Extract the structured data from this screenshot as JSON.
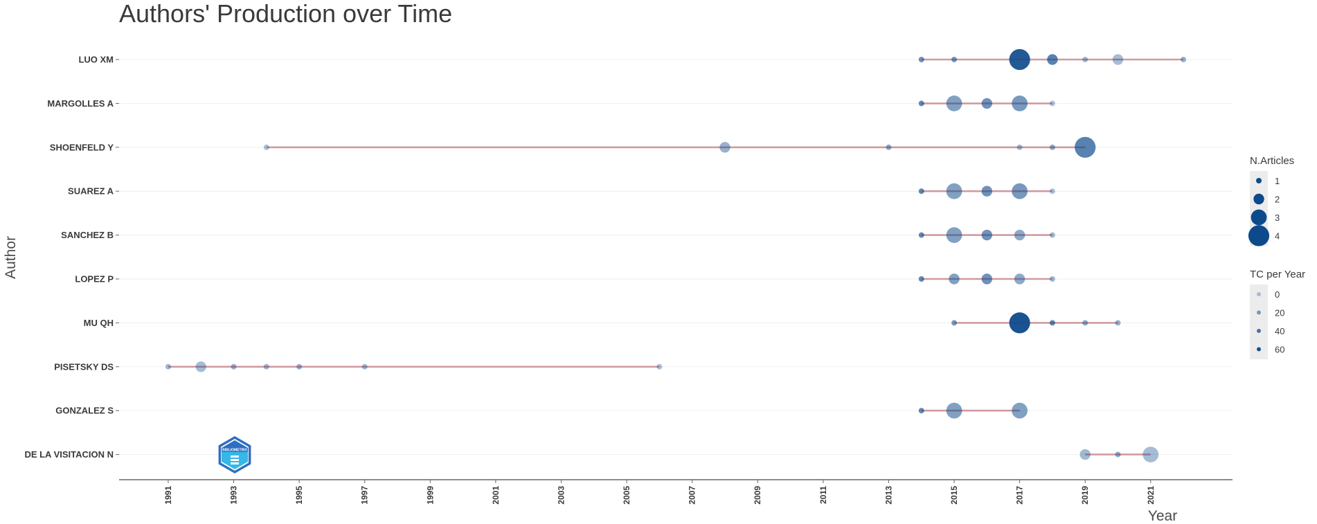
{
  "chart_data": {
    "type": "scatter",
    "title": "Authors' Production over Time",
    "xlabel": "Year",
    "ylabel": "Author",
    "xlim": [
      1989.5,
      2023.5
    ],
    "x_ticks": [
      1991,
      1993,
      1995,
      1997,
      1999,
      2001,
      2003,
      2005,
      2007,
      2009,
      2011,
      2013,
      2015,
      2017,
      2019,
      2021
    ],
    "authors": [
      "LUO XM",
      "MARGOLLES A",
      "SHOENFELD Y",
      "SUAREZ A",
      "SANCHEZ B",
      "LOPEZ P",
      "MU QH",
      "PISETSKY DS",
      "GONZALEZ S",
      "DE LA VISITACION N"
    ],
    "series": [
      {
        "author": "LUO XM",
        "range": [
          2014,
          2022
        ],
        "points": [
          {
            "year": 2014,
            "articles": 1,
            "tc": 35
          },
          {
            "year": 2015,
            "articles": 1,
            "tc": 30
          },
          {
            "year": 2017,
            "articles": 4,
            "tc": 70
          },
          {
            "year": 2018,
            "articles": 2,
            "tc": 45
          },
          {
            "year": 2019,
            "articles": 1,
            "tc": 10
          },
          {
            "year": 2020,
            "articles": 2,
            "tc": 8
          },
          {
            "year": 2022,
            "articles": 1,
            "tc": 15
          }
        ]
      },
      {
        "author": "MARGOLLES A",
        "range": [
          2014,
          2018
        ],
        "points": [
          {
            "year": 2014,
            "articles": 1,
            "tc": 40
          },
          {
            "year": 2015,
            "articles": 3,
            "tc": 25
          },
          {
            "year": 2016,
            "articles": 2,
            "tc": 35
          },
          {
            "year": 2017,
            "articles": 3,
            "tc": 30
          },
          {
            "year": 2018,
            "articles": 1,
            "tc": 5
          }
        ]
      },
      {
        "author": "SHOENFELD Y",
        "range": [
          1994,
          2019
        ],
        "points": [
          {
            "year": 1994,
            "articles": 1,
            "tc": 5
          },
          {
            "year": 2008,
            "articles": 2,
            "tc": 15
          },
          {
            "year": 2013,
            "articles": 1,
            "tc": 20
          },
          {
            "year": 2017,
            "articles": 1,
            "tc": 10
          },
          {
            "year": 2018,
            "articles": 1,
            "tc": 20
          },
          {
            "year": 2019,
            "articles": 4,
            "tc": 45
          }
        ]
      },
      {
        "author": "SUAREZ A",
        "range": [
          2014,
          2018
        ],
        "points": [
          {
            "year": 2014,
            "articles": 1,
            "tc": 40
          },
          {
            "year": 2015,
            "articles": 3,
            "tc": 25
          },
          {
            "year": 2016,
            "articles": 2,
            "tc": 35
          },
          {
            "year": 2017,
            "articles": 3,
            "tc": 30
          },
          {
            "year": 2018,
            "articles": 1,
            "tc": 5
          }
        ]
      },
      {
        "author": "SANCHEZ B",
        "range": [
          2014,
          2018
        ],
        "points": [
          {
            "year": 2014,
            "articles": 1,
            "tc": 40
          },
          {
            "year": 2015,
            "articles": 3,
            "tc": 25
          },
          {
            "year": 2016,
            "articles": 2,
            "tc": 35
          },
          {
            "year": 2017,
            "articles": 2,
            "tc": 20
          },
          {
            "year": 2018,
            "articles": 1,
            "tc": 10
          }
        ]
      },
      {
        "author": "LOPEZ P",
        "range": [
          2014,
          2018
        ],
        "points": [
          {
            "year": 2014,
            "articles": 1,
            "tc": 40
          },
          {
            "year": 2015,
            "articles": 2,
            "tc": 25
          },
          {
            "year": 2016,
            "articles": 2,
            "tc": 35
          },
          {
            "year": 2017,
            "articles": 2,
            "tc": 20
          },
          {
            "year": 2018,
            "articles": 1,
            "tc": 10
          }
        ]
      },
      {
        "author": "MU QH",
        "range": [
          2015,
          2020
        ],
        "points": [
          {
            "year": 2015,
            "articles": 1,
            "tc": 30
          },
          {
            "year": 2017,
            "articles": 4,
            "tc": 75
          },
          {
            "year": 2018,
            "articles": 1,
            "tc": 40
          },
          {
            "year": 2019,
            "articles": 1,
            "tc": 20
          },
          {
            "year": 2020,
            "articles": 1,
            "tc": 15
          }
        ]
      },
      {
        "author": "PISETSKY DS",
        "range": [
          1991,
          2006
        ],
        "points": [
          {
            "year": 1991,
            "articles": 1,
            "tc": 10
          },
          {
            "year": 1992,
            "articles": 2,
            "tc": 8
          },
          {
            "year": 1993,
            "articles": 1,
            "tc": 15
          },
          {
            "year": 1994,
            "articles": 1,
            "tc": 10
          },
          {
            "year": 1995,
            "articles": 1,
            "tc": 15
          },
          {
            "year": 1997,
            "articles": 1,
            "tc": 10
          },
          {
            "year": 2006,
            "articles": 1,
            "tc": 5
          }
        ]
      },
      {
        "author": "GONZALEZ S",
        "range": [
          2014,
          2017
        ],
        "points": [
          {
            "year": 2014,
            "articles": 1,
            "tc": 40
          },
          {
            "year": 2015,
            "articles": 3,
            "tc": 25
          },
          {
            "year": 2017,
            "articles": 3,
            "tc": 25
          }
        ]
      },
      {
        "author": "DE LA VISITACION N",
        "range": [
          2019,
          2021
        ],
        "points": [
          {
            "year": 2019,
            "articles": 2,
            "tc": 10
          },
          {
            "year": 2020,
            "articles": 1,
            "tc": 20
          },
          {
            "year": 2021,
            "articles": 3,
            "tc": 8
          }
        ]
      }
    ],
    "legend_articles": {
      "title": "N.Articles",
      "items": [
        "1",
        "2",
        "3",
        "4"
      ]
    },
    "legend_tc": {
      "title": "TC per Year",
      "items": [
        "0",
        "20",
        "40",
        "60"
      ]
    },
    "colors": {
      "point": "#0d4a8c",
      "line": "#c98a8f",
      "grid": "#efefef",
      "axis": "#666666",
      "legend_bg": "#ececec"
    },
    "logo": {
      "name": "bibliometrix-logo-icon",
      "text": "BIBLIOMETRIX"
    },
    "legend_placement": "right",
    "grid": true
  }
}
